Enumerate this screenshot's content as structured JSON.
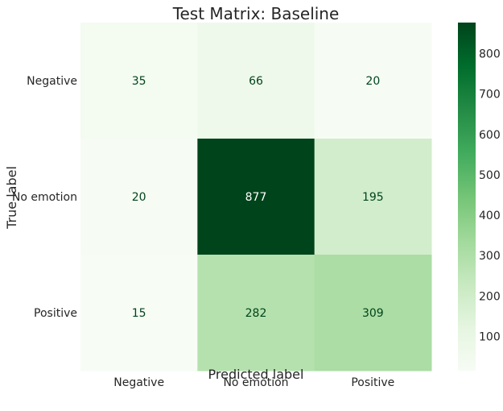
{
  "chart_data": {
    "type": "heatmap",
    "title": "Test Matrix: Baseline",
    "xlabel": "Predicted label",
    "ylabel": "True label",
    "x_categories": [
      "Negative",
      "No emotion",
      "Positive"
    ],
    "y_categories": [
      "Negative",
      "No emotion",
      "Positive"
    ],
    "values": [
      [
        35,
        66,
        20
      ],
      [
        20,
        877,
        195
      ],
      [
        15,
        282,
        309
      ]
    ],
    "colormap": "Greens",
    "colorbar": {
      "range": [
        15,
        877
      ],
      "ticks": [
        100,
        200,
        300,
        400,
        500,
        600,
        700,
        800
      ]
    },
    "colors": {
      "low": "#f7fcf5",
      "high": "#00441b",
      "text_dark_cell": "#ffffff",
      "text_light_cell": "#00441b"
    }
  }
}
